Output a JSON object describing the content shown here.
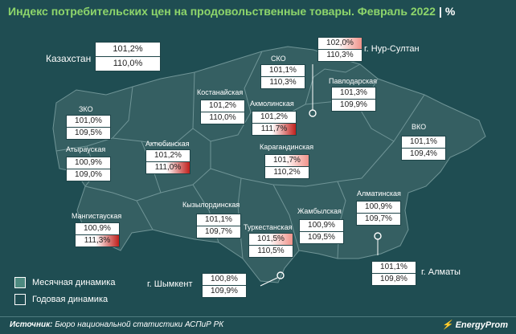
{
  "header": {
    "title": "Индекс потребительских цен на продовольственные товары. Февраль 2022",
    "unit": "%"
  },
  "kazakhstan": {
    "label": "Казахстан",
    "monthly": "101,2%",
    "yearly": "110,0%"
  },
  "regions": [
    {
      "id": "zko",
      "label": "ЗКО",
      "monthly": "101,0%",
      "yearly": "109,5%",
      "highlight": ""
    },
    {
      "id": "atyrau",
      "label": "Атырауская",
      "monthly": "100,9%",
      "yearly": "109,0%",
      "highlight": ""
    },
    {
      "id": "mangystau",
      "label": "Мангистауская",
      "monthly": "100,9%",
      "yearly": "111,3%",
      "highlight": "yearly"
    },
    {
      "id": "aktobe",
      "label": "Актюбинская",
      "monthly": "101,2%",
      "yearly": "111,0%",
      "highlight": "yearly"
    },
    {
      "id": "kostanay",
      "label": "Костанайская",
      "monthly": "101,2%",
      "yearly": "110,0%",
      "highlight": ""
    },
    {
      "id": "sko",
      "label": "СКО",
      "monthly": "101,1%",
      "yearly": "110,3%",
      "highlight": ""
    },
    {
      "id": "akmola",
      "label": "Акмолинская",
      "monthly": "101,2%",
      "yearly": "111,7%",
      "highlight": "yearly"
    },
    {
      "id": "pavlodar",
      "label": "Павлодарская",
      "monthly": "101,3%",
      "yearly": "109,9%",
      "highlight": ""
    },
    {
      "id": "vko",
      "label": "ВКО",
      "monthly": "101,1%",
      "yearly": "109,4%",
      "highlight": ""
    },
    {
      "id": "karaganda",
      "label": "Карагандинская",
      "monthly": "101,7%",
      "yearly": "110,2%",
      "highlight": "monthly"
    },
    {
      "id": "kyzylorda",
      "label": "Кызылординская",
      "monthly": "101,1%",
      "yearly": "109,7%",
      "highlight": ""
    },
    {
      "id": "turkestan",
      "label": "Туркестанская",
      "monthly": "101,5%",
      "yearly": "110,5%",
      "highlight": "monthly"
    },
    {
      "id": "zhambyl",
      "label": "Жамбылская",
      "monthly": "100,9%",
      "yearly": "109,5%",
      "highlight": ""
    },
    {
      "id": "almaty-obl",
      "label": "Алматинская",
      "monthly": "100,9%",
      "yearly": "109,7%",
      "highlight": ""
    }
  ],
  "cities": [
    {
      "id": "nur-sultan",
      "label": "г. Нур-Султан",
      "monthly": "102,0%",
      "yearly": "110,3%",
      "highlight": "monthly"
    },
    {
      "id": "almaty",
      "label": "г. Алматы",
      "monthly": "101,1%",
      "yearly": "109,8%",
      "highlight": ""
    },
    {
      "id": "shymkent",
      "label": "г. Шымкент",
      "monthly": "100,8%",
      "yearly": "109,9%",
      "highlight": ""
    }
  ],
  "legend": {
    "monthly_label": "Месячная динамика",
    "yearly_label": "Годовая динамика"
  },
  "footer": {
    "source_prefix": "Источник:",
    "source_text": "Бюро национальной статистики АСПиР РК",
    "brand": "EnergyProm"
  },
  "colors": {
    "background": "#1f4d52",
    "land": "#355f62",
    "borders": "#6f9496",
    "title": "#8ed66b",
    "monthly_growth_highlight": "#f0938a",
    "yearly_growth_highlight": "#c0201c"
  }
}
